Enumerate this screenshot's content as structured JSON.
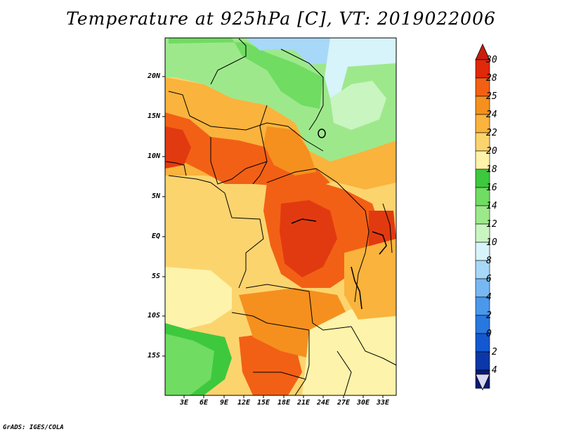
{
  "title": "Temperature at 925hPa [C], VT: 2019022006",
  "credit": "GrADS: IGES/COLA",
  "lat_labels": [
    "20N",
    "15N",
    "10N",
    "5N",
    "EQ",
    "5S",
    "10S",
    "15S"
  ],
  "lon_labels": [
    "3E",
    "6E",
    "9E",
    "12E",
    "15E",
    "18E",
    "21E",
    "24E",
    "27E",
    "30E",
    "33E"
  ],
  "colorbar": {
    "labels": [
      "30",
      "28",
      "25",
      "24",
      "22",
      "20",
      "18",
      "16",
      "14",
      "12",
      "10",
      "8",
      "6",
      "4",
      "2",
      "0",
      "-2",
      "-4"
    ],
    "colors": [
      "#e0280a",
      "#f26015",
      "#f5901e",
      "#fab33c",
      "#fcd46e",
      "#fdf3aa",
      "#3ec83e",
      "#70dc62",
      "#9ee88c",
      "#c8f5c0",
      "#d6f4fa",
      "#a8d8f8",
      "#78b8f2",
      "#4a98ec",
      "#2878e0",
      "#1458d0",
      "#0a38a8",
      "#0a1a78"
    ],
    "top_triangle_color": "#c81e0a",
    "bottom_triangle_color": "#d8d8f2"
  },
  "map_colors": {
    "hot_deep": "#e23a10",
    "hot": "#f26015",
    "warm_orange": "#f5901e",
    "orange": "#fab33c",
    "light_orange": "#fcd46e",
    "pale_yellow": "#fdf3aa",
    "green_dark": "#3ec83e",
    "green": "#70dc62",
    "green_light": "#9ee88c",
    "green_pale": "#c8f5c0",
    "cyan_pale": "#d6f4fa",
    "blue_light": "#a8d8f8",
    "coast": "#000000"
  }
}
